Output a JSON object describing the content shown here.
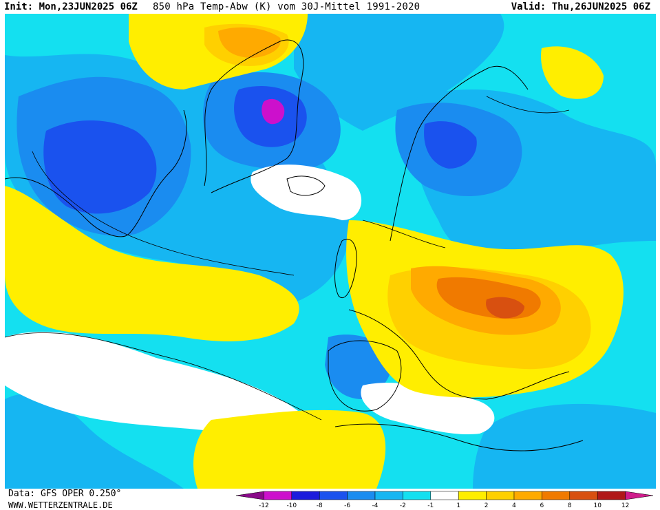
{
  "header": {
    "init": "Init: Mon,23JUN2025 06Z",
    "title": "850 hPa Temp-Abw (K) vom 30J-Mittel 1991-2020",
    "valid": "Valid: Thu,26JUN2025 06Z"
  },
  "footer": {
    "source": "Data: GFS OPER 0.250°",
    "url": "WWW.WETTERZENTRALE.DE"
  },
  "legend": {
    "ticks": [
      "-12",
      "-10",
      "-8",
      "-6",
      "-4",
      "-2",
      "-1",
      "1",
      "2",
      "4",
      "6",
      "8",
      "10",
      "12"
    ],
    "colors": [
      "#8a0a8a",
      "#cc10cc",
      "#1c1cdc",
      "#1a52ee",
      "#1a8cf0",
      "#16b6f2",
      "#14e0f0",
      "#ffffff",
      "#ffee00",
      "#ffd000",
      "#ffaa00",
      "#f07a00",
      "#d85010",
      "#b01818",
      "#d01c8c"
    ]
  },
  "map_colors": {
    "neg1": "#14e0f0",
    "neg2": "#16b6f2",
    "neg4": "#1a8cf0",
    "neg6": "#1a52ee",
    "neg10": "#cc10cc",
    "zero": "#ffffff",
    "pos1": "#ffee00",
    "pos2": "#ffd000",
    "pos4": "#ffaa00",
    "pos6": "#f07a00",
    "pos8": "#d85010"
  }
}
